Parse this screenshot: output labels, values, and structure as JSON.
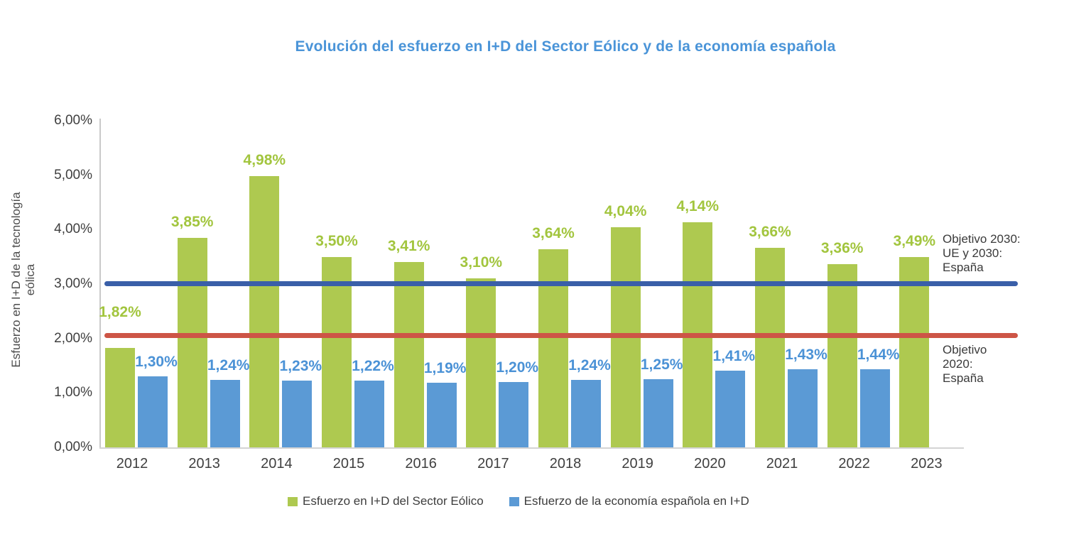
{
  "title": "Evolución del esfuerzo en I+D del Sector Eólico y de la economía española",
  "y_axis_title": "Esfuerzo en I+D de la tecnología eólica",
  "annotations": {
    "objetivo_2030": [
      "Objetivo 2030:",
      "UE y 2030:",
      "España"
    ],
    "objetivo_2020": [
      "Objetivo",
      "2020:",
      "España"
    ]
  },
  "legend": [
    {
      "label": "Esfuerzo en I+D del Sector Eólico",
      "color": "#aec950"
    },
    {
      "label": "Esfuerzo de la economía española en I+D",
      "color": "#5b9ad5"
    }
  ],
  "colors": {
    "title_blue": "#4a94d8",
    "green_bar": "#aec950",
    "green_label": "#a2c53e",
    "blue_bar": "#5b9ad5",
    "blue_label": "#4b92d6",
    "navy_line": "#3a5fa8",
    "red_line": "#cd5546",
    "axis_gray": "#c9c9c9",
    "text_dark": "#3f3f3f"
  },
  "chart_data": {
    "type": "bar",
    "title": "Evolución del esfuerzo en I+D del Sector Eólico y de la economía española",
    "ylabel": "Esfuerzo en I+D de la tecnología eólica",
    "xlabel": "",
    "ylim": [
      0,
      6
    ],
    "grid": false,
    "legend_position": "bottom",
    "y_ticks": [
      "0,00%",
      "1,00%",
      "2,00%",
      "3,00%",
      "4,00%",
      "5,00%",
      "6,00%"
    ],
    "categories": [
      "2012",
      "2013",
      "2014",
      "2015",
      "2016",
      "2017",
      "2018",
      "2019",
      "2020",
      "2021",
      "2022",
      "2023"
    ],
    "series": [
      {
        "name": "Esfuerzo en I+D del Sector Eólico",
        "color": "#aec950",
        "label_color": "#a2c53e",
        "values": [
          1.82,
          3.85,
          4.98,
          3.5,
          3.41,
          3.1,
          3.64,
          4.04,
          4.14,
          3.66,
          3.36,
          3.49
        ],
        "labels": [
          "1,82%",
          "3,85%",
          "4,98%",
          "3,50%",
          "3,41%",
          "3,10%",
          "3,64%",
          "4,04%",
          "4,14%",
          "3,66%",
          "3,36%",
          "3,49%"
        ]
      },
      {
        "name": "Esfuerzo de la economía española en I+D",
        "color": "#5b9ad5",
        "label_color": "#4b92d6",
        "values": [
          1.3,
          1.24,
          1.23,
          1.22,
          1.19,
          1.2,
          1.24,
          1.25,
          1.41,
          1.43,
          1.44,
          null
        ],
        "labels": [
          "1,30%",
          "1,24%",
          "1,23%",
          "1,22%",
          "1,19%",
          "1,20%",
          "1,24%",
          "1,25%",
          "1,41%",
          "1,43%",
          "1,44%",
          ""
        ]
      }
    ],
    "reference_lines": [
      {
        "label": "Objetivo 2030: UE y 2030: España",
        "value": 3.0,
        "y_pct": 3.0,
        "color": "#3a5fa8"
      },
      {
        "label": "Objetivo 2020: España",
        "value": 2.0,
        "y_pct": 2.05,
        "color": "#cd5546"
      }
    ]
  }
}
